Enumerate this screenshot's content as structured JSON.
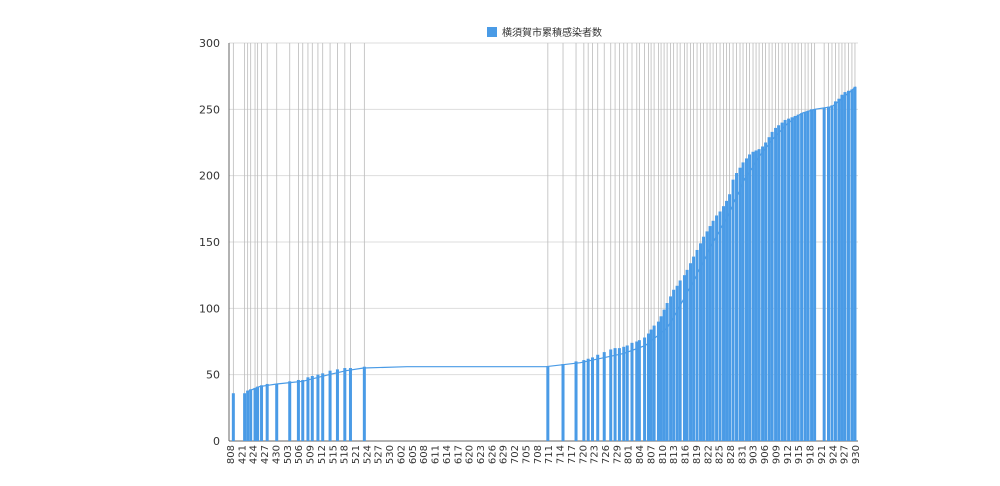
{
  "chart_data": {
    "type": "bar",
    "title": "",
    "xlabel": "",
    "ylabel": "",
    "legend": {
      "label": "横須賀市累積感染者数",
      "placement": "top-center"
    },
    "ylim": [
      0,
      300
    ],
    "yticks": [
      0,
      50,
      100,
      150,
      200,
      250,
      300
    ],
    "grid": true,
    "colors": {
      "bar": "#4a9be6",
      "line": "#4a9be6",
      "grid_v": "#bbbbbb",
      "grid_h": "#dddddd",
      "axis": "#666666"
    },
    "categories": [
      "808",
      "421",
      "424",
      "427",
      "430",
      "503",
      "506",
      "509",
      "512",
      "515",
      "518",
      "521",
      "524",
      "527",
      "530",
      "602",
      "605",
      "608",
      "611",
      "614",
      "617",
      "620",
      "623",
      "626",
      "629",
      "702",
      "705",
      "708",
      "711",
      "714",
      "717",
      "720",
      "723",
      "726",
      "729",
      "801",
      "804",
      "807",
      "810",
      "813",
      "816",
      "819",
      "822",
      "825",
      "828",
      "831",
      "903",
      "906",
      "909",
      "912",
      "915",
      "918",
      "921",
      "924",
      "927",
      "930"
    ],
    "series": [
      {
        "name": "横須賀市累積感染者数",
        "type": "bar",
        "points": [
          [
            0,
            36
          ],
          [
            2.6,
            36
          ],
          [
            3.3,
            38
          ],
          [
            4.0,
            39
          ],
          [
            5.0,
            40
          ],
          [
            5.6,
            41
          ],
          [
            6.5,
            42
          ],
          [
            7.8,
            43
          ],
          [
            10.0,
            43
          ],
          [
            13.0,
            45
          ],
          [
            15.0,
            46
          ],
          [
            16.0,
            46
          ],
          [
            17.2,
            48
          ],
          [
            18.2,
            49
          ],
          [
            19.5,
            50
          ],
          [
            20.6,
            51
          ],
          [
            22.3,
            53
          ],
          [
            24.0,
            54
          ],
          [
            25.7,
            55
          ],
          [
            27.0,
            55
          ],
          [
            30.2,
            56
          ],
          [
            72.5,
            56
          ],
          [
            76.0,
            58
          ],
          [
            79.0,
            60
          ],
          [
            80.8,
            61
          ],
          [
            81.8,
            62
          ],
          [
            82.8,
            63
          ],
          [
            84.0,
            65
          ],
          [
            85.5,
            67
          ],
          [
            87.0,
            69
          ],
          [
            88.0,
            70
          ],
          [
            89.0,
            70
          ],
          [
            90.0,
            71
          ],
          [
            90.8,
            72
          ],
          [
            91.9,
            74
          ],
          [
            93.0,
            75
          ],
          [
            93.6,
            76
          ],
          [
            94.8,
            78
          ],
          [
            95.7,
            81
          ],
          [
            96.3,
            84
          ],
          [
            97.0,
            87
          ],
          [
            98.0,
            90
          ],
          [
            98.6,
            94
          ],
          [
            99.3,
            99
          ],
          [
            100.0,
            104
          ],
          [
            100.8,
            109
          ],
          [
            101.5,
            114
          ],
          [
            102.3,
            117
          ],
          [
            103.0,
            121
          ],
          [
            104.0,
            125
          ],
          [
            104.6,
            129
          ],
          [
            105.4,
            134
          ],
          [
            106.1,
            139
          ],
          [
            106.9,
            144
          ],
          [
            107.7,
            149
          ],
          [
            108.4,
            154
          ],
          [
            109.2,
            158
          ],
          [
            109.9,
            162
          ],
          [
            110.6,
            166
          ],
          [
            111.4,
            170
          ],
          [
            112.2,
            173
          ],
          [
            113.0,
            177
          ],
          [
            113.7,
            181
          ],
          [
            114.4,
            186
          ],
          [
            115.2,
            197
          ],
          [
            116.0,
            202
          ],
          [
            116.8,
            206
          ],
          [
            117.5,
            210
          ],
          [
            118.3,
            213
          ],
          [
            119.0,
            216
          ],
          [
            119.8,
            218
          ],
          [
            120.5,
            219
          ],
          [
            121.2,
            220
          ],
          [
            122.0,
            222
          ],
          [
            122.7,
            225
          ],
          [
            123.5,
            229
          ],
          [
            124.2,
            233
          ],
          [
            125.0,
            236
          ],
          [
            125.7,
            238
          ],
          [
            126.5,
            240
          ],
          [
            127.2,
            242
          ],
          [
            128.0,
            243
          ],
          [
            128.8,
            244
          ],
          [
            129.5,
            245
          ],
          [
            130.2,
            246
          ],
          [
            131.0,
            247
          ],
          [
            131.8,
            248
          ],
          [
            132.5,
            249
          ],
          [
            133.3,
            250
          ],
          [
            134.0,
            250
          ],
          [
            136.2,
            251
          ],
          [
            137.2,
            252
          ],
          [
            138.0,
            253
          ],
          [
            138.8,
            256
          ],
          [
            139.6,
            258
          ],
          [
            140.3,
            261
          ],
          [
            141.0,
            263
          ],
          [
            141.8,
            264
          ],
          [
            142.6,
            265
          ],
          [
            143.3,
            267
          ]
        ]
      },
      {
        "name": "",
        "type": "line",
        "points": [
          [
            3.0,
            37
          ],
          [
            4.5,
            39
          ],
          [
            6.0,
            41
          ],
          [
            8.0,
            42
          ],
          [
            10.0,
            43
          ],
          [
            16.0,
            45
          ],
          [
            22.0,
            50
          ],
          [
            26.0,
            53
          ],
          [
            30.0,
            55
          ],
          [
            40.0,
            56
          ],
          [
            72.0,
            56
          ],
          [
            80.0,
            59
          ],
          [
            90.0,
            66
          ],
          [
            95.0,
            72
          ],
          [
            100.0,
            85
          ],
          [
            103.0,
            102
          ],
          [
            106.0,
            120
          ],
          [
            110.0,
            146
          ],
          [
            114.0,
            170
          ],
          [
            118.0,
            198
          ],
          [
            122.0,
            218
          ],
          [
            125.0,
            230
          ],
          [
            128.0,
            240
          ],
          [
            131.0,
            247
          ],
          [
            134.0,
            250
          ],
          [
            138.0,
            252
          ],
          [
            141.0,
            260
          ],
          [
            143.5,
            267
          ]
        ]
      }
    ],
    "x_range": [
      -1,
      144
    ]
  }
}
